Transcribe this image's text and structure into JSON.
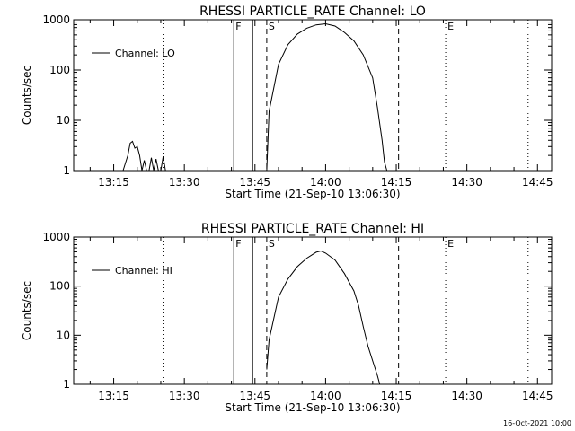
{
  "footer": "16-Oct-2021 10:00",
  "chart_data": [
    {
      "type": "line",
      "title": "RHESSI PARTICLE_RATE Channel: LO",
      "xlabel": "Start Time (21-Sep-10 13:06:30)",
      "ylabel": "Counts/sec",
      "ylog": true,
      "xlim": [
        "13:06:30",
        "14:48:00"
      ],
      "ylim": [
        1,
        1000
      ],
      "xticks": [
        "13:15",
        "13:30",
        "13:45",
        "14:00",
        "14:15",
        "14:30",
        "14:45"
      ],
      "yticks": [
        "1",
        "10",
        "100",
        "1000"
      ],
      "legend": {
        "position": "top-left",
        "entries": [
          "Channel: LO"
        ]
      },
      "series": [
        {
          "name": "Channel: LO",
          "segments": [
            [
              [
                "13:17:00",
                1.0
              ],
              [
                "13:18:00",
                2.0
              ],
              [
                "13:18:30",
                3.5
              ],
              [
                "13:19:00",
                3.8
              ],
              [
                "13:19:30",
                2.8
              ],
              [
                "13:20:00",
                3.0
              ],
              [
                "13:20:30",
                2.0
              ],
              [
                "13:21:00",
                1.0
              ],
              [
                "13:21:30",
                1.6
              ],
              [
                "13:22:00",
                1.0
              ]
            ],
            [
              [
                "13:22:30",
                1.0
              ],
              [
                "13:23:00",
                1.8
              ],
              [
                "13:23:30",
                1.0
              ],
              [
                "13:24:00",
                1.7
              ],
              [
                "13:24:30",
                1.0
              ]
            ],
            [
              [
                "13:25:00",
                1.0
              ],
              [
                "13:25:30",
                1.9
              ],
              [
                "13:26:00",
                1.0
              ]
            ],
            [
              [
                "13:47:30",
                1.0
              ],
              [
                "13:48:00",
                15
              ],
              [
                "13:50:00",
                130
              ],
              [
                "13:52:00",
                320
              ],
              [
                "13:54:00",
                520
              ],
              [
                "13:56:00",
                680
              ],
              [
                "13:58:00",
                790
              ],
              [
                "14:00:00",
                830
              ],
              [
                "14:02:00",
                750
              ],
              [
                "14:04:00",
                560
              ],
              [
                "14:06:00",
                380
              ],
              [
                "14:08:00",
                200
              ],
              [
                "14:10:00",
                70
              ],
              [
                "14:11:00",
                18
              ],
              [
                "14:12:00",
                4
              ],
              [
                "14:12:30",
                1.5
              ],
              [
                "14:13:00",
                1.0
              ]
            ]
          ]
        }
      ],
      "markers": {
        "solid": [
          "13:40:30",
          "13:44:30"
        ],
        "dashed": [
          "13:47:30",
          "14:15:30"
        ],
        "dotted": [
          "13:25:30",
          "14:25:30",
          "14:43:00"
        ]
      },
      "flags": [
        {
          "label": "F",
          "x": "13:40:30"
        },
        {
          "label": "S",
          "x": "13:47:30"
        },
        {
          "label": "E",
          "x": "14:25:30"
        }
      ]
    },
    {
      "type": "line",
      "title": "RHESSI PARTICLE_RATE Channel: HI",
      "xlabel": "Start Time (21-Sep-10 13:06:30)",
      "ylabel": "Counts/sec",
      "ylog": true,
      "xlim": [
        "13:06:30",
        "14:48:00"
      ],
      "ylim": [
        1,
        1000
      ],
      "xticks": [
        "13:15",
        "13:30",
        "13:45",
        "14:00",
        "14:15",
        "14:30",
        "14:45"
      ],
      "yticks": [
        "1",
        "10",
        "100",
        "1000"
      ],
      "legend": {
        "position": "top-left",
        "entries": [
          "Channel: HI"
        ]
      },
      "series": [
        {
          "name": "Channel: HI",
          "segments": [
            [
              [
                "13:47:30",
                2.0
              ],
              [
                "13:48:00",
                8
              ],
              [
                "13:50:00",
                60
              ],
              [
                "13:52:00",
                140
              ],
              [
                "13:54:00",
                250
              ],
              [
                "13:56:00",
                370
              ],
              [
                "13:58:00",
                490
              ],
              [
                "13:59:00",
                520
              ],
              [
                "14:00:00",
                470
              ],
              [
                "14:02:00",
                340
              ],
              [
                "14:04:00",
                180
              ],
              [
                "14:06:00",
                80
              ],
              [
                "14:07:00",
                40
              ],
              [
                "14:08:00",
                15
              ],
              [
                "14:09:00",
                6
              ],
              [
                "14:10:00",
                3
              ],
              [
                "14:11:00",
                1.5
              ],
              [
                "14:11:30",
                1.0
              ]
            ]
          ]
        }
      ],
      "markers": {
        "solid": [
          "13:40:30",
          "13:44:30"
        ],
        "dashed": [
          "13:47:30",
          "14:15:30"
        ],
        "dotted": [
          "13:25:30",
          "14:25:30",
          "14:43:00"
        ]
      },
      "flags": [
        {
          "label": "F",
          "x": "13:40:30"
        },
        {
          "label": "S",
          "x": "13:47:30"
        },
        {
          "label": "E",
          "x": "14:25:30"
        }
      ]
    }
  ]
}
